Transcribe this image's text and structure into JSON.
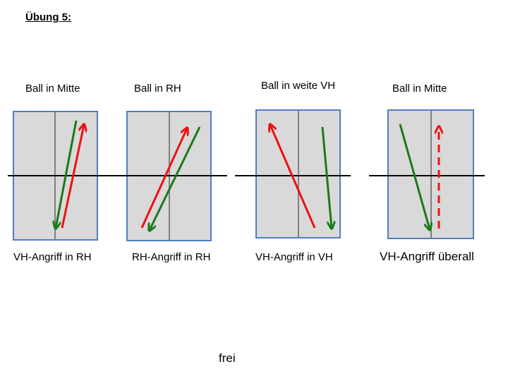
{
  "title": "Übung 5:",
  "drills": [
    {
      "top_label": "Ball in Mitte",
      "bottom_label": "VH-Angriff in RH"
    },
    {
      "top_label": "Ball in RH",
      "bottom_label": "RH-Angriff in RH"
    },
    {
      "top_label": "Ball in weite VH",
      "bottom_label": "VH-Angriff in VH"
    },
    {
      "top_label": "Ball in Mitte",
      "bottom_label": "VH-Angriff überall"
    }
  ],
  "footer": "frei",
  "colors": {
    "table_fill": "#d9d9d9",
    "table_border": "#4f7fbf",
    "center_line": "#808080",
    "net": "#000000",
    "arrow_green": "#1a7a1a",
    "arrow_red": "#ee1111"
  }
}
